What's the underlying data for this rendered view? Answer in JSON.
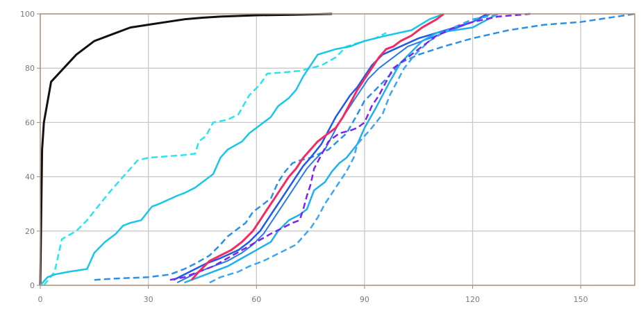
{
  "chart_data": {
    "type": "line",
    "title": "",
    "xlabel": "",
    "ylabel": "",
    "xlim": [
      0,
      165
    ],
    "ylim": [
      0,
      100
    ],
    "xticks": [
      0,
      30,
      60,
      90,
      120,
      150
    ],
    "yticks": [
      0,
      20,
      40,
      60,
      80,
      100
    ],
    "xtick_labels": [
      "0",
      "30",
      "60",
      "90",
      "120",
      "150"
    ],
    "ytick_labels": [
      "0",
      "20",
      "40",
      "60",
      "80",
      "100"
    ],
    "grid": true,
    "legend": "none",
    "series": [
      {
        "color": "#111111",
        "dash": "solid",
        "width": 3,
        "x": [
          0,
          0.5,
          1,
          3,
          10,
          15,
          20,
          25,
          30,
          35,
          40,
          45,
          50,
          60,
          70,
          81
        ],
        "y": [
          0,
          50,
          60,
          75,
          85,
          90,
          92.5,
          95,
          96,
          97,
          98,
          98.6,
          99,
          99.5,
          99.7,
          100
        ]
      },
      {
        "color": "#29E5F0",
        "dash": "dashed",
        "width": 2.5,
        "x": [
          1,
          4,
          6,
          10,
          13,
          16,
          19,
          23,
          25,
          27,
          30,
          35,
          40,
          43,
          44,
          46,
          48,
          52,
          55,
          58,
          61,
          63,
          68,
          72,
          78,
          82,
          85,
          90,
          93,
          96
        ],
        "y": [
          0,
          5,
          17,
          20,
          24,
          29,
          34,
          40,
          43,
          46,
          47,
          47.5,
          48,
          48.5,
          53,
          55,
          60,
          61,
          63,
          70,
          74,
          78,
          78.5,
          79,
          81,
          84,
          88,
          90,
          91,
          93
        ]
      },
      {
        "color": "#18C6EA",
        "dash": "solid",
        "width": 2.5,
        "x": [
          0,
          2,
          4,
          8,
          13,
          15,
          18,
          21,
          23,
          25,
          28,
          31,
          33,
          38,
          40,
          43,
          45,
          48,
          50,
          52,
          56,
          58,
          62,
          64,
          66,
          69,
          71,
          73,
          77,
          82,
          86,
          90,
          96,
          103,
          108,
          112
        ],
        "y": [
          0,
          3,
          4,
          5,
          6,
          12,
          16,
          19,
          22,
          23,
          24,
          29,
          30,
          33,
          34,
          36,
          38,
          41,
          47,
          50,
          53,
          56,
          60,
          62,
          66,
          69,
          72,
          77,
          85,
          87,
          88,
          90,
          92,
          94,
          98,
          100
        ]
      },
      {
        "color": "#2A90E8",
        "dash": "dashed",
        "width": 2.5,
        "x": [
          15,
          21,
          30,
          36,
          40,
          43,
          47,
          50,
          52,
          55,
          57,
          59,
          61,
          64,
          66,
          68,
          70,
          72,
          75,
          80,
          85,
          88,
          90,
          93,
          96,
          100,
          105,
          112,
          120,
          130,
          140,
          150,
          165
        ],
        "y": [
          2,
          2.5,
          3,
          4,
          6,
          8,
          11,
          15,
          18,
          21,
          23,
          27,
          29,
          32,
          38,
          42,
          45,
          46,
          47,
          50,
          56,
          63,
          68,
          72,
          76,
          82,
          85,
          88,
          91,
          94,
          96,
          97,
          100
        ]
      },
      {
        "color": "#1E5AE6",
        "dash": "solid",
        "width": 2.5,
        "x": [
          37,
          40,
          43,
          46,
          50,
          55,
          58,
          61,
          63,
          65,
          67,
          69,
          71,
          73,
          75,
          78,
          80,
          82,
          84,
          86,
          88,
          90,
          92,
          95,
          100,
          105,
          110,
          115,
          120,
          124
        ],
        "y": [
          2,
          4,
          6,
          8,
          10,
          13,
          16,
          20,
          24,
          28,
          32,
          36,
          40,
          44,
          47,
          52,
          57,
          62,
          66,
          70,
          73,
          77,
          81,
          85,
          88,
          91,
          93,
          95,
          97,
          100
        ]
      },
      {
        "color": "#2A78E8",
        "dash": "solid",
        "width": 2,
        "x": [
          38,
          41,
          44,
          48,
          52,
          56,
          59,
          62,
          64,
          66,
          68,
          70,
          72,
          74,
          76,
          79,
          81,
          83,
          85,
          87,
          89,
          91,
          94,
          98,
          102,
          108,
          114,
          120,
          125
        ],
        "y": [
          1,
          3,
          5,
          7,
          9,
          12,
          15,
          19,
          23,
          27,
          31,
          35,
          39,
          43,
          46,
          50,
          55,
          60,
          64,
          68,
          72,
          76,
          80,
          84,
          88,
          91,
          94,
          97,
          100
        ]
      },
      {
        "color": "#1FB0EE",
        "dash": "solid",
        "width": 2.5,
        "x": [
          40,
          44,
          48,
          52,
          56,
          60,
          64,
          66,
          69,
          72,
          74,
          76,
          79,
          81,
          83,
          85,
          88,
          90,
          93,
          95,
          97,
          100,
          103,
          106,
          110,
          115,
          120,
          127
        ],
        "y": [
          1,
          3,
          5,
          7,
          10,
          13,
          16,
          20,
          24,
          26,
          28,
          35,
          38,
          42,
          45,
          47,
          52,
          58,
          65,
          70,
          75,
          82,
          86,
          90,
          93,
          94,
          95,
          100
        ]
      },
      {
        "color": "#3FA4F2",
        "dash": "dashed",
        "width": 2.5,
        "x": [
          47,
          50,
          55,
          58,
          62,
          65,
          68,
          71,
          73,
          75,
          77,
          79,
          81,
          83,
          85,
          87,
          88,
          90,
          92,
          95,
          97,
          99,
          101,
          104,
          108,
          113,
          120,
          128
        ],
        "y": [
          1,
          3,
          5,
          7,
          9,
          11,
          13,
          15,
          18,
          21,
          25,
          30,
          34,
          38,
          42,
          47,
          52,
          55,
          58,
          63,
          70,
          75,
          80,
          85,
          90,
          94,
          98,
          100
        ]
      },
      {
        "color": "#7E22F0",
        "dash": "dashed",
        "width": 2.5,
        "x": [
          36,
          40,
          44,
          48,
          52,
          56,
          60,
          64,
          67,
          70,
          72,
          73,
          74,
          75,
          76,
          78,
          80,
          83,
          86,
          88,
          90,
          92,
          94,
          96,
          98,
          100,
          103,
          106,
          110,
          115,
          120,
          127,
          136
        ],
        "y": [
          2,
          3,
          5,
          7,
          10,
          13,
          16,
          19,
          21,
          23,
          24,
          28,
          33,
          37,
          43,
          48,
          53,
          56,
          57,
          58,
          60,
          66,
          70,
          75,
          80,
          82,
          85,
          88,
          92,
          95,
          97,
          99,
          100
        ]
      },
      {
        "color": "#F52A62",
        "dash": "solid",
        "width": 3,
        "x": [
          42,
          44,
          47,
          50,
          53,
          56,
          59,
          61,
          63,
          65,
          67,
          69,
          71,
          73,
          75,
          77,
          79,
          82,
          84,
          86,
          88,
          90,
          92,
          94,
          96,
          98,
          100,
          103,
          106,
          110,
          112
        ],
        "y": [
          2,
          5,
          9,
          11,
          13,
          16,
          20,
          24,
          28,
          32,
          36,
          40,
          43,
          47,
          50,
          53,
          55,
          58,
          62,
          67,
          72,
          76,
          80,
          84,
          87,
          88,
          90,
          92,
          95,
          98,
          100
        ]
      }
    ]
  }
}
